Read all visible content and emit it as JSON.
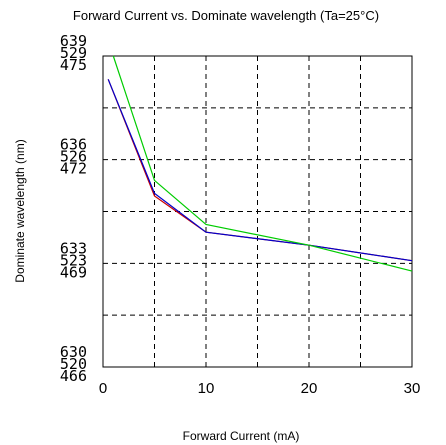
{
  "chart_data": {
    "type": "line",
    "title": "Forward Current vs. Dominate wavelength (Ta=25°C)",
    "xlabel": "Forward  Current  (mA)",
    "ylabel": "Dominate wavelength (nm)",
    "xlim": [
      0,
      30
    ],
    "x_ticks": [
      "0",
      "10",
      "20",
      "30"
    ],
    "y_tick_groups": [
      [
        "639",
        "529",
        "475"
      ],
      [
        "636",
        "526",
        "472"
      ],
      [
        "633",
        "523",
        "469"
      ],
      [
        "630",
        "520",
        "466"
      ]
    ],
    "ylim": [
      0,
      6
    ],
    "y_unit_note": "each major gridline on the y axis equals one of six equal divisions; the three stacked tick labels give the wavelength scale of each series",
    "grid": true,
    "series": [
      {
        "color": "#cc0000",
        "x": [
          0.5,
          5,
          10,
          20,
          30
        ],
        "y": [
          5.55,
          3.3,
          2.6,
          2.35,
          2.05
        ]
      },
      {
        "color": "#0000cc",
        "x": [
          0.5,
          5,
          10,
          20,
          30
        ],
        "y": [
          5.55,
          3.35,
          2.6,
          2.35,
          2.05
        ]
      },
      {
        "color": "#00cc00",
        "x": [
          1,
          5,
          10,
          20,
          30
        ],
        "y": [
          6.0,
          3.6,
          2.75,
          2.35,
          1.85
        ]
      }
    ]
  }
}
